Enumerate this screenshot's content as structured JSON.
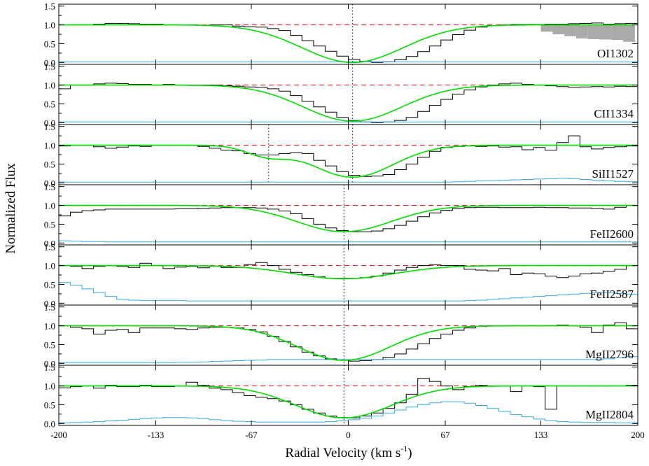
{
  "chart_data": {
    "type": "line",
    "xlabel": "Radial Velocity (km s",
    "xlabel_sup": "-1",
    "xlabel_end": ")",
    "ylabel": "Normalized Flux",
    "xlim": [
      -200,
      200
    ],
    "ylim": [
      -0.05,
      1.55
    ],
    "x_ticks": [
      -200,
      -133,
      -67,
      0,
      67,
      133,
      200
    ],
    "x_tick_labels": [
      "-200",
      "-133",
      "-67",
      "0",
      "67",
      "133",
      "200"
    ],
    "y_ticks": [
      0.0,
      0.5,
      1.0,
      1.5
    ],
    "y_tick_labels": [
      "0.0",
      "0.5",
      "1.0",
      "1.5"
    ],
    "continuum_level": 1.0,
    "colors": {
      "data": "#000000",
      "model": "#00dd00",
      "error": "#33aaee",
      "continuum": "#ee2222",
      "masked": "#aaaaaa",
      "marker": "#000000"
    },
    "panels": [
      {
        "label": "OI1302",
        "components": [
          {
            "center": 3,
            "depth": 1.0,
            "sigma": 35
          }
        ],
        "markers": [
          3
        ],
        "flux": [
          1.0,
          1.0,
          1.0,
          1.02,
          1.04,
          1.04,
          1.03,
          1.02,
          1.02,
          1.0,
          1.0,
          1.0,
          0.99,
          1.0,
          1.0,
          0.97,
          0.95,
          0.94,
          0.9,
          0.85,
          0.72,
          0.58,
          0.44,
          0.3,
          0.17,
          0.08,
          0.03,
          0.0,
          0.02,
          0.07,
          0.16,
          0.29,
          0.44,
          0.6,
          0.74,
          0.86,
          0.94,
          0.98,
          1.0,
          1.01,
          1.01,
          1.01,
          1.02,
          1.02,
          1.03,
          1.04,
          1.05,
          1.02,
          1.03,
          1.04
        ],
        "error": [
          0.02,
          0.02,
          0.02,
          0.02,
          0.02,
          0.02,
          0.02,
          0.02,
          0.02,
          0.02,
          0.02,
          0.02,
          0.02,
          0.02,
          0.02,
          0.02,
          0.02,
          0.02,
          0.02,
          0.02,
          0.02,
          0.02,
          0.02,
          0.02,
          0.02,
          0.02,
          0.02,
          0.02,
          0.02,
          0.02,
          0.02,
          0.02,
          0.02,
          0.02,
          0.02,
          0.02,
          0.02,
          0.02,
          0.02,
          0.02,
          0.02,
          0.02,
          0.02,
          0.02,
          0.02,
          0.02,
          0.02,
          0.02,
          0.02,
          0.02
        ],
        "masked_region": [
          133,
          198
        ],
        "masked_flux": [
          0.82,
          0.75,
          0.7,
          0.64,
          0.62,
          0.61,
          0.6,
          0.55
        ]
      },
      {
        "label": "CII1334",
        "components": [
          {
            "center": 3,
            "depth": 0.96,
            "sigma": 34
          }
        ],
        "markers": [
          3
        ],
        "flux": [
          0.9,
          1.0,
          1.0,
          1.03,
          1.05,
          1.04,
          1.02,
          1.02,
          1.0,
          1.02,
          1.0,
          0.99,
          1.0,
          1.0,
          0.98,
          0.97,
          0.95,
          0.94,
          0.9,
          0.84,
          0.72,
          0.57,
          0.42,
          0.28,
          0.14,
          0.06,
          0.02,
          0.0,
          0.02,
          0.06,
          0.14,
          0.3,
          0.46,
          0.62,
          0.76,
          0.87,
          0.95,
          1.0,
          1.03,
          1.05,
          1.02,
          1.0,
          0.98,
          0.96,
          0.94,
          0.95,
          0.96,
          0.95,
          0.97,
          0.96
        ],
        "error": [
          0.02,
          0.02,
          0.02,
          0.02,
          0.02,
          0.02,
          0.02,
          0.02,
          0.02,
          0.02,
          0.02,
          0.02,
          0.02,
          0.02,
          0.02,
          0.02,
          0.02,
          0.02,
          0.02,
          0.02,
          0.02,
          0.02,
          0.02,
          0.02,
          0.02,
          0.02,
          0.02,
          0.02,
          0.02,
          0.02,
          0.02,
          0.02,
          0.02,
          0.02,
          0.02,
          0.02,
          0.02,
          0.02,
          0.02,
          0.02,
          0.02,
          0.02,
          0.02,
          0.02,
          0.02,
          0.02,
          0.02,
          0.02,
          0.02,
          0.02
        ]
      },
      {
        "label": "SiII1527",
        "components": [
          {
            "center": 3,
            "depth": 0.85,
            "sigma": 28
          },
          {
            "center": -55,
            "depth": 0.28,
            "sigma": 15
          }
        ],
        "markers": [
          -55,
          3
        ],
        "flux": [
          0.98,
          1.0,
          1.0,
          0.96,
          0.92,
          0.95,
          0.98,
          0.97,
          1.0,
          1.0,
          1.0,
          1.0,
          0.97,
          0.92,
          0.87,
          0.85,
          0.78,
          0.74,
          0.74,
          0.78,
          0.8,
          0.78,
          0.6,
          0.45,
          0.3,
          0.2,
          0.17,
          0.18,
          0.22,
          0.35,
          0.5,
          0.68,
          0.84,
          0.94,
          0.97,
          0.98,
          0.97,
          0.98,
          0.95,
          0.96,
          0.88,
          0.94,
          0.87,
          1.07,
          1.25,
          0.96,
          0.9,
          0.94,
          0.96,
          0.98
        ],
        "error": [
          0.02,
          0.02,
          0.02,
          0.02,
          0.02,
          0.02,
          0.02,
          0.02,
          0.02,
          0.02,
          0.02,
          0.02,
          0.02,
          0.02,
          0.02,
          0.02,
          0.02,
          0.02,
          0.02,
          0.02,
          0.02,
          0.02,
          0.02,
          0.02,
          0.02,
          0.02,
          0.02,
          0.02,
          0.02,
          0.02,
          0.02,
          0.02,
          0.02,
          0.02,
          0.03,
          0.04,
          0.05,
          0.06,
          0.07,
          0.08,
          0.09,
          0.1,
          0.11,
          0.12,
          0.11,
          0.09,
          0.07,
          0.05,
          0.04,
          0.03
        ]
      },
      {
        "label": "FeII2600",
        "components": [
          {
            "center": -3,
            "depth": 0.7,
            "sigma": 33
          }
        ],
        "markers": [
          -3
        ],
        "flux": [
          0.72,
          0.82,
          0.86,
          0.88,
          0.9,
          0.9,
          0.9,
          0.9,
          0.9,
          0.9,
          0.91,
          0.91,
          0.92,
          0.93,
          0.94,
          0.94,
          0.94,
          0.93,
          0.9,
          0.85,
          0.78,
          0.65,
          0.5,
          0.4,
          0.33,
          0.3,
          0.3,
          0.32,
          0.38,
          0.47,
          0.58,
          0.7,
          0.8,
          0.87,
          0.92,
          0.94,
          0.95,
          0.95,
          0.94,
          0.94,
          0.94,
          0.95,
          0.94,
          0.94,
          0.93,
          0.93,
          0.92,
          0.9,
          0.95,
          1.0
        ],
        "error": [
          0.06,
          0.05,
          0.04,
          0.04,
          0.03,
          0.03,
          0.03,
          0.03,
          0.03,
          0.03,
          0.03,
          0.03,
          0.03,
          0.03,
          0.03,
          0.03,
          0.03,
          0.03,
          0.03,
          0.03,
          0.03,
          0.03,
          0.03,
          0.03,
          0.03,
          0.03,
          0.03,
          0.03,
          0.03,
          0.03,
          0.03,
          0.03,
          0.03,
          0.03,
          0.03,
          0.03,
          0.03,
          0.03,
          0.03,
          0.03,
          0.03,
          0.03,
          0.03,
          0.03,
          0.03,
          0.03,
          0.03,
          0.03,
          0.03,
          0.03
        ]
      },
      {
        "label": "FeII2587",
        "components": [
          {
            "center": -3,
            "depth": 0.35,
            "sigma": 35
          }
        ],
        "markers": [
          -3
        ],
        "flux": [
          1.0,
          0.98,
          0.92,
          0.98,
          1.0,
          0.98,
          0.95,
          1.06,
          1.0,
          0.92,
          0.96,
          0.98,
          0.94,
          0.98,
          0.95,
          0.95,
          1.02,
          1.08,
          1.0,
          0.9,
          0.82,
          0.76,
          0.7,
          0.66,
          0.66,
          0.66,
          0.68,
          0.72,
          0.8,
          0.88,
          0.95,
          1.0,
          1.02,
          1.0,
          1.0,
          0.9,
          0.88,
          0.86,
          0.92,
          0.76,
          0.8,
          0.78,
          0.72,
          0.68,
          0.72,
          0.78,
          0.8,
          0.85,
          0.9,
          1.0
        ],
        "error": [
          0.55,
          0.48,
          0.38,
          0.28,
          0.18,
          0.1,
          0.08,
          0.07,
          0.07,
          0.07,
          0.07,
          0.06,
          0.06,
          0.06,
          0.06,
          0.06,
          0.06,
          0.06,
          0.06,
          0.06,
          0.06,
          0.06,
          0.06,
          0.06,
          0.06,
          0.06,
          0.06,
          0.06,
          0.06,
          0.06,
          0.06,
          0.06,
          0.06,
          0.06,
          0.06,
          0.07,
          0.08,
          0.1,
          0.12,
          0.14,
          0.16,
          0.18,
          0.2,
          0.22,
          0.24,
          0.26,
          0.28,
          0.28,
          0.26,
          0.24
        ]
      },
      {
        "label": "MgII2796",
        "components": [
          {
            "center": -3,
            "depth": 0.92,
            "sigma": 32
          }
        ],
        "markers": [
          -3
        ],
        "flux": [
          1.0,
          0.96,
          0.92,
          0.78,
          0.88,
          0.9,
          0.82,
          0.94,
          0.94,
          0.94,
          0.92,
          0.9,
          0.94,
          0.96,
          0.96,
          0.94,
          0.9,
          0.84,
          0.72,
          0.58,
          0.44,
          0.3,
          0.2,
          0.12,
          0.08,
          0.06,
          0.07,
          0.1,
          0.16,
          0.25,
          0.38,
          0.52,
          0.66,
          0.78,
          0.88,
          0.94,
          0.98,
          1.0,
          1.0,
          1.0,
          1.0,
          1.0,
          1.0,
          1.02,
          1.0,
          0.96,
          0.82,
          1.02,
          1.08,
          0.92
        ],
        "error": [
          0.02,
          0.02,
          0.02,
          0.02,
          0.02,
          0.02,
          0.02,
          0.02,
          0.02,
          0.02,
          0.03,
          0.03,
          0.04,
          0.05,
          0.06,
          0.07,
          0.08,
          0.09,
          0.1,
          0.1,
          0.1,
          0.1,
          0.1,
          0.1,
          0.1,
          0.1,
          0.1,
          0.1,
          0.1,
          0.1,
          0.1,
          0.1,
          0.1,
          0.1,
          0.1,
          0.1,
          0.1,
          0.1,
          0.1,
          0.1,
          0.1,
          0.1,
          0.1,
          0.1,
          0.1,
          0.1,
          0.1,
          0.12,
          0.15,
          0.18
        ]
      },
      {
        "label": "MgII2804",
        "components": [
          {
            "center": -3,
            "depth": 0.85,
            "sigma": 33
          }
        ],
        "markers": [
          -3
        ],
        "flux": [
          0.95,
          0.98,
          1.0,
          0.94,
          1.02,
          0.98,
          0.98,
          1.02,
          0.98,
          0.98,
          1.0,
          1.1,
          1.02,
          0.94,
          0.9,
          0.82,
          0.74,
          0.7,
          0.66,
          0.6,
          0.5,
          0.38,
          0.28,
          0.2,
          0.16,
          0.15,
          0.2,
          0.28,
          0.4,
          0.55,
          0.78,
          1.2,
          1.12,
          1.0,
          0.9,
          0.98,
          1.02,
          1.0,
          1.0,
          0.85,
          1.0,
          0.98,
          0.38,
          1.0,
          1.0,
          1.0,
          1.0,
          1.0,
          1.0,
          1.02
        ],
        "error": [
          0.02,
          0.03,
          0.04,
          0.05,
          0.07,
          0.09,
          0.11,
          0.13,
          0.15,
          0.16,
          0.16,
          0.15,
          0.13,
          0.1,
          0.08,
          0.06,
          0.05,
          0.04,
          0.04,
          0.04,
          0.04,
          0.04,
          0.04,
          0.05,
          0.07,
          0.1,
          0.14,
          0.2,
          0.28,
          0.36,
          0.44,
          0.5,
          0.55,
          0.58,
          0.58,
          0.54,
          0.48,
          0.4,
          0.32,
          0.24,
          0.18,
          0.12,
          0.08,
          0.05,
          0.04,
          0.03,
          0.03,
          0.03,
          0.02,
          0.02
        ]
      }
    ]
  }
}
